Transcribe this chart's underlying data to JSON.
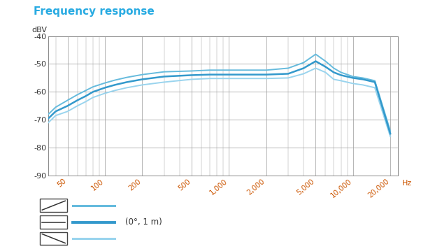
{
  "title": "Frequency response",
  "title_color": "#29abe2",
  "ylabel": "dBV",
  "xlabel": "Hz",
  "ylim": [
    -90,
    -40
  ],
  "yticks": [
    -90,
    -80,
    -70,
    -60,
    -50,
    -40
  ],
  "xlim_log": [
    35,
    23000
  ],
  "xtick_values": [
    50,
    100,
    200,
    500,
    1000,
    2000,
    5000,
    10000,
    20000
  ],
  "xtick_labels": [
    "50",
    "100",
    "200",
    "500",
    "1,000",
    "2,000",
    "5,000",
    "10,000",
    "20,000"
  ],
  "bg_color": "#ffffff",
  "grid_color": "#999999",
  "legend_label": "(0°, 1 m)",
  "curve_main_color": "#3399cc",
  "curve_upper_color": "#66bbdd",
  "curve_lower_color": "#99d4ee",
  "freq_pts": [
    35,
    40,
    50,
    60,
    70,
    80,
    100,
    120,
    150,
    200,
    300,
    500,
    700,
    1000,
    1500,
    2000,
    3000,
    4000,
    5000,
    6000,
    7000,
    8000,
    10000,
    12000,
    15000,
    20000
  ],
  "dbv_main": [
    -69.5,
    -67,
    -65,
    -63,
    -61.5,
    -60,
    -58.5,
    -57.5,
    -56.5,
    -55.5,
    -54.5,
    -54,
    -53.8,
    -53.8,
    -53.8,
    -53.8,
    -53.5,
    -51.5,
    -49.0,
    -51,
    -53,
    -54,
    -55,
    -55.5,
    -56.5,
    -75
  ],
  "dbv_upper": [
    -68,
    -65.5,
    -63,
    -61,
    -59.5,
    -58.2,
    -56.8,
    -55.8,
    -54.8,
    -53.8,
    -52.8,
    -52.5,
    -52.2,
    -52.2,
    -52.2,
    -52.2,
    -51.5,
    -49.5,
    -46.5,
    -49,
    -51.5,
    -53,
    -54.5,
    -55,
    -56,
    -74
  ],
  "dbv_lower": [
    -71,
    -68.5,
    -67,
    -65,
    -63.5,
    -62,
    -60.5,
    -59.5,
    -58.5,
    -57.5,
    -56.5,
    -55.5,
    -55.2,
    -55.2,
    -55.2,
    -55.2,
    -55,
    -53.5,
    -51.5,
    -53,
    -55.5,
    -56,
    -57,
    -57.5,
    -58.5,
    -76
  ]
}
